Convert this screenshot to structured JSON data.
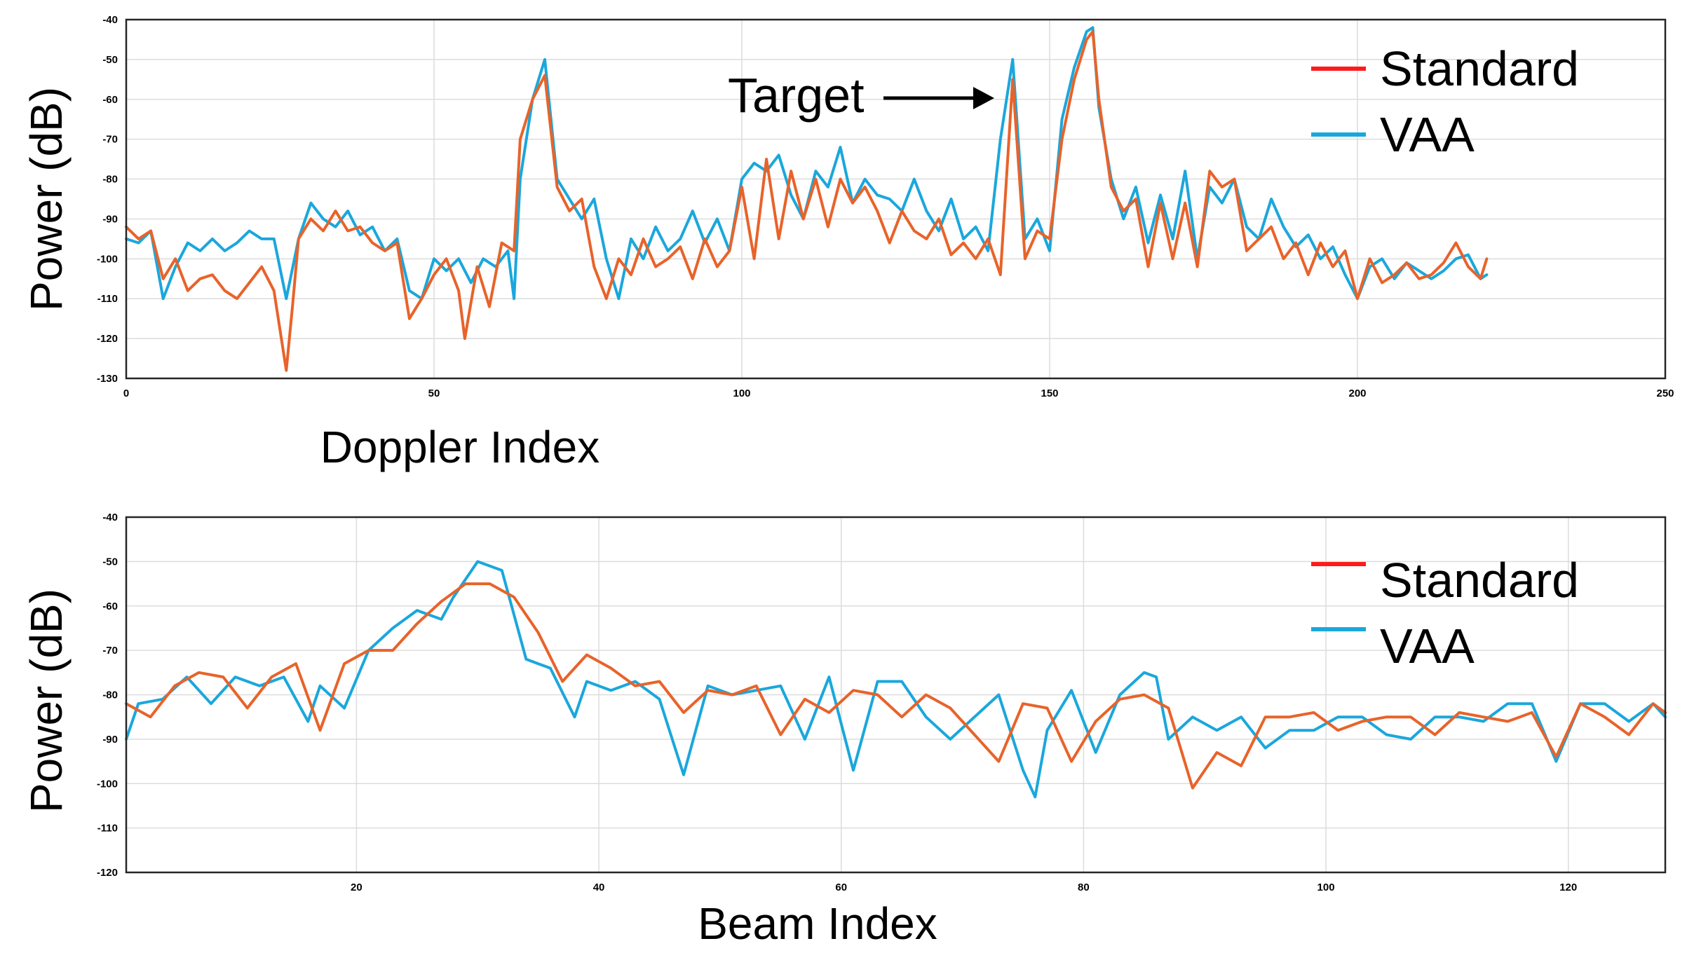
{
  "colors": {
    "standard": "#e8632a",
    "standard_legend": "#ff1a1a",
    "vaa": "#1aa7dc",
    "frame": "#262626",
    "grid": "#dcdcdc"
  },
  "chart_data": [
    {
      "type": "line",
      "xlabel": "Doppler Index",
      "ylabel": "Power (dB)",
      "xlim": [
        0,
        250
      ],
      "ylim": [
        -130,
        -40
      ],
      "xticks": [
        "0",
        "50",
        "100",
        "150",
        "200",
        "250"
      ],
      "yticks": [
        "-40",
        "-50",
        "-60",
        "-70",
        "-80",
        "-90",
        "-100",
        "-110",
        "-120",
        "-130"
      ],
      "grid": true,
      "legend": {
        "placement": "top-right",
        "entries": [
          "Standard",
          "VAA"
        ]
      },
      "annotation": {
        "text": "Target",
        "x": 144,
        "y": -59
      },
      "series": [
        {
          "name": "Standard",
          "x": [
            0,
            2,
            4,
            6,
            8,
            10,
            12,
            14,
            16,
            18,
            20,
            22,
            24,
            26,
            27,
            28,
            30,
            32,
            34,
            36,
            38,
            40,
            42,
            44,
            46,
            48,
            50,
            52,
            54,
            55,
            57,
            59,
            61,
            63,
            64,
            66,
            68,
            70,
            72,
            74,
            76,
            78,
            80,
            82,
            84,
            86,
            88,
            90,
            92,
            94,
            96,
            98,
            100,
            102,
            104,
            106,
            108,
            110,
            112,
            114,
            116,
            118,
            120,
            122,
            124,
            126,
            128,
            130,
            132,
            134,
            136,
            138,
            140,
            142,
            144,
            146,
            148,
            150,
            152,
            154,
            156,
            157,
            158,
            160,
            162,
            164,
            166,
            168,
            170,
            172,
            174,
            176,
            178,
            180,
            182,
            184,
            186,
            188,
            190,
            192,
            194,
            196,
            198,
            200,
            202,
            204,
            206,
            208,
            210,
            212,
            214,
            216,
            218,
            220,
            221
          ],
          "values": [
            -92,
            -95,
            -93,
            -105,
            -100,
            -108,
            -105,
            -104,
            -108,
            -110,
            -106,
            -102,
            -108,
            -128,
            -112,
            -95,
            -90,
            -93,
            -88,
            -93,
            -92,
            -96,
            -98,
            -96,
            -115,
            -110,
            -104,
            -100,
            -108,
            -120,
            -102,
            -112,
            -96,
            -98,
            -70,
            -60,
            -54,
            -82,
            -88,
            -85,
            -102,
            -110,
            -100,
            -104,
            -95,
            -102,
            -100,
            -97,
            -105,
            -95,
            -102,
            -98,
            -82,
            -100,
            -75,
            -95,
            -78,
            -90,
            -80,
            -92,
            -80,
            -86,
            -82,
            -88,
            -96,
            -88,
            -93,
            -95,
            -90,
            -99,
            -96,
            -100,
            -95,
            -104,
            -55,
            -100,
            -93,
            -95,
            -70,
            -55,
            -45,
            -43,
            -60,
            -82,
            -88,
            -85,
            -102,
            -86,
            -100,
            -86,
            -102,
            -78,
            -82,
            -80,
            -98,
            -95,
            -92,
            -100,
            -96,
            -104,
            -96,
            -102,
            -98,
            -110,
            -100,
            -106,
            -104,
            -101,
            -105,
            -104,
            -101,
            -96,
            -102,
            -105,
            -100
          ]
        },
        {
          "name": "VAA",
          "x": [
            0,
            2,
            4,
            6,
            8,
            10,
            12,
            14,
            16,
            18,
            20,
            22,
            24,
            26,
            28,
            30,
            32,
            34,
            36,
            38,
            40,
            42,
            44,
            46,
            48,
            50,
            52,
            54,
            56,
            58,
            60,
            62,
            63,
            64,
            66,
            68,
            70,
            72,
            74,
            76,
            78,
            80,
            82,
            84,
            86,
            88,
            90,
            92,
            94,
            96,
            98,
            100,
            102,
            104,
            106,
            108,
            110,
            112,
            114,
            116,
            118,
            120,
            122,
            124,
            126,
            128,
            130,
            132,
            134,
            136,
            138,
            140,
            142,
            144,
            146,
            148,
            150,
            152,
            154,
            156,
            157,
            158,
            160,
            162,
            164,
            166,
            168,
            170,
            172,
            174,
            176,
            178,
            180,
            182,
            184,
            186,
            188,
            190,
            192,
            194,
            196,
            198,
            200,
            202,
            204,
            206,
            208,
            210,
            212,
            214,
            216,
            218,
            220,
            221
          ],
          "values": [
            -95,
            -96,
            -93,
            -110,
            -102,
            -96,
            -98,
            -95,
            -98,
            -96,
            -93,
            -95,
            -95,
            -110,
            -95,
            -86,
            -90,
            -92,
            -88,
            -94,
            -92,
            -98,
            -95,
            -108,
            -110,
            -100,
            -103,
            -100,
            -106,
            -100,
            -102,
            -98,
            -110,
            -80,
            -60,
            -50,
            -80,
            -85,
            -90,
            -85,
            -100,
            -110,
            -95,
            -100,
            -92,
            -98,
            -95,
            -88,
            -96,
            -90,
            -98,
            -80,
            -76,
            -78,
            -74,
            -84,
            -90,
            -78,
            -82,
            -72,
            -86,
            -80,
            -84,
            -85,
            -88,
            -80,
            -88,
            -93,
            -85,
            -95,
            -92,
            -98,
            -70,
            -50,
            -95,
            -90,
            -98,
            -65,
            -52,
            -43,
            -42,
            -62,
            -80,
            -90,
            -82,
            -96,
            -84,
            -95,
            -78,
            -100,
            -82,
            -86,
            -80,
            -92,
            -95,
            -85,
            -92,
            -97,
            -94,
            -100,
            -97,
            -104,
            -110,
            -102,
            -100,
            -105,
            -101,
            -103,
            -105,
            -103,
            -100,
            -99,
            -105,
            -104
          ]
        }
      ]
    },
    {
      "type": "line",
      "xlabel": "Beam Index",
      "ylabel": "Power (dB)",
      "xlim": [
        1,
        128
      ],
      "ylim": [
        -120,
        -40
      ],
      "xticks": [
        "20",
        "40",
        "60",
        "80",
        "100",
        "120"
      ],
      "yticks": [
        "-40",
        "-50",
        "-60",
        "-70",
        "-80",
        "-90",
        "-100",
        "-110",
        "-120"
      ],
      "grid": true,
      "legend": {
        "placement": "top-right",
        "entries": [
          "Standard",
          "VAA"
        ]
      },
      "series": [
        {
          "name": "Standard",
          "x": [
            1,
            3,
            5,
            7,
            9,
            11,
            13,
            15,
            17,
            19,
            21,
            23,
            25,
            27,
            29,
            31,
            33,
            35,
            37,
            39,
            41,
            43,
            45,
            47,
            49,
            51,
            53,
            55,
            57,
            59,
            61,
            63,
            65,
            67,
            69,
            71,
            73,
            75,
            77,
            79,
            81,
            83,
            85,
            87,
            89,
            91,
            93,
            95,
            97,
            99,
            101,
            103,
            105,
            107,
            109,
            111,
            113,
            115,
            117,
            119,
            121,
            123,
            125,
            127,
            128
          ],
          "values": [
            -82,
            -85,
            -78,
            -75,
            -76,
            -83,
            -76,
            -73,
            -88,
            -73,
            -70,
            -70,
            -64,
            -59,
            -55,
            -55,
            -58,
            -66,
            -77,
            -71,
            -74,
            -78,
            -77,
            -84,
            -79,
            -80,
            -78,
            -89,
            -81,
            -84,
            -79,
            -80,
            -85,
            -80,
            -83,
            -89,
            -95,
            -82,
            -83,
            -95,
            -86,
            -81,
            -80,
            -83,
            -101,
            -93,
            -96,
            -85,
            -85,
            -84,
            -88,
            -86,
            -85,
            -85,
            -89,
            -84,
            -85,
            -86,
            -84,
            -94,
            -82,
            -85,
            -89,
            -82,
            -84
          ]
        },
        {
          "name": "VAA",
          "x": [
            1,
            2,
            4,
            6,
            8,
            10,
            12,
            14,
            16,
            17,
            19,
            21,
            23,
            25,
            27,
            28,
            30,
            32,
            34,
            36,
            38,
            39,
            41,
            43,
            45,
            47,
            49,
            51,
            53,
            55,
            57,
            59,
            61,
            63,
            65,
            67,
            69,
            71,
            73,
            75,
            76,
            77,
            79,
            81,
            83,
            85,
            86,
            87,
            89,
            91,
            93,
            95,
            97,
            99,
            101,
            103,
            105,
            107,
            109,
            111,
            113,
            115,
            117,
            119,
            121,
            123,
            125,
            127,
            128
          ],
          "values": [
            -90,
            -82,
            -81,
            -76,
            -82,
            -76,
            -78,
            -76,
            -86,
            -78,
            -83,
            -70,
            -65,
            -61,
            -63,
            -58,
            -50,
            -52,
            -72,
            -74,
            -85,
            -77,
            -79,
            -77,
            -81,
            -98,
            -78,
            -80,
            -79,
            -78,
            -90,
            -76,
            -97,
            -77,
            -77,
            -85,
            -90,
            -85,
            -80,
            -97,
            -103,
            -88,
            -79,
            -93,
            -80,
            -75,
            -76,
            -90,
            -85,
            -88,
            -85,
            -92,
            -88,
            -88,
            -85,
            -85,
            -89,
            -90,
            -85,
            -85,
            -86,
            -82,
            -82,
            -95,
            -82,
            -82,
            -86,
            -82,
            -85
          ]
        }
      ]
    }
  ]
}
